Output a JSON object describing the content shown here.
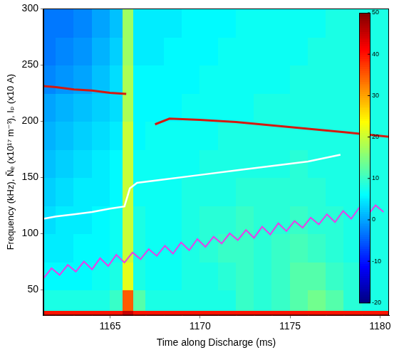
{
  "chart_data": {
    "type": "heatmap",
    "x_label": "Time along Discharge (ms)",
    "y_label": "Frequency (kHz), Ñₑ (x10¹⁷ m⁻³), Iₚ (x10 A)",
    "xlim": [
      1161.3,
      1180.5
    ],
    "xticks": [
      1165,
      1170,
      1175,
      1180
    ],
    "ylim": [
      27,
      300
    ],
    "yticks": [
      50,
      100,
      150,
      200,
      250,
      300
    ],
    "grid": true,
    "heatmap": {
      "x_edges": [
        1161.3,
        1162,
        1163,
        1164,
        1165,
        1165.7,
        1166.3,
        1167,
        1168,
        1169,
        1170,
        1171,
        1172,
        1173,
        1174,
        1175,
        1176,
        1177,
        1178,
        1179,
        1180,
        1180.5
      ],
      "y_edges": [
        27,
        32,
        50,
        75,
        100,
        125,
        150,
        175,
        200,
        225,
        250,
        275,
        300
      ],
      "cells": [
        [
          40,
          40,
          40,
          40,
          40,
          45,
          40,
          40,
          40,
          40,
          40,
          40,
          40,
          40,
          40,
          40,
          40,
          40,
          40,
          40,
          40
        ],
        [
          8,
          8,
          8,
          8,
          10,
          35,
          12,
          8,
          8,
          8,
          8,
          8,
          10,
          9,
          10,
          12,
          14,
          12,
          9,
          8,
          8
        ],
        [
          6,
          6,
          6,
          7,
          8,
          22,
          8,
          7,
          7,
          8,
          8,
          9,
          10,
          9,
          10,
          12,
          12,
          10,
          9,
          8,
          8
        ],
        [
          5,
          5,
          6,
          6,
          7,
          20,
          8,
          7,
          7,
          8,
          9,
          10,
          10,
          9,
          10,
          11,
          10,
          9,
          8,
          8,
          8
        ],
        [
          4,
          5,
          5,
          6,
          7,
          20,
          8,
          7,
          7,
          8,
          9,
          9,
          10,
          9,
          9,
          10,
          9,
          9,
          8,
          8,
          8
        ],
        [
          3,
          4,
          5,
          5,
          6,
          20,
          7,
          7,
          7,
          8,
          8,
          8,
          9,
          9,
          9,
          9,
          9,
          8,
          8,
          8,
          8
        ],
        [
          2,
          3,
          4,
          5,
          6,
          20,
          7,
          7,
          7,
          7,
          8,
          8,
          8,
          8,
          8,
          9,
          8,
          8,
          8,
          8,
          8
        ],
        [
          1,
          2,
          3,
          4,
          5,
          20,
          6,
          7,
          7,
          7,
          7,
          8,
          8,
          8,
          8,
          8,
          8,
          8,
          8,
          8,
          8
        ],
        [
          0,
          1,
          2,
          3,
          4,
          18,
          6,
          6,
          6,
          7,
          7,
          7,
          7,
          8,
          8,
          8,
          8,
          8,
          8,
          8,
          8
        ],
        [
          -2,
          -1,
          0,
          2,
          4,
          18,
          6,
          6,
          6,
          6,
          7,
          7,
          7,
          7,
          7,
          8,
          8,
          8,
          8,
          8,
          8
        ],
        [
          -3,
          -2,
          -1,
          1,
          3,
          17,
          5,
          5,
          6,
          6,
          6,
          7,
          7,
          7,
          7,
          7,
          8,
          8,
          8,
          8,
          8
        ],
        [
          -3,
          -3,
          -2,
          0,
          2,
          17,
          5,
          5,
          5,
          6,
          6,
          6,
          7,
          7,
          7,
          7,
          7,
          8,
          8,
          8,
          8
        ]
      ]
    },
    "colorbar": {
      "range": [
        -20,
        50
      ],
      "ticks": [
        -20,
        -10,
        0,
        10,
        20,
        30,
        40,
        50
      ]
    },
    "series": [
      {
        "type": "line",
        "color": "#d41a10",
        "x": [
          1161.3,
          1162,
          1163,
          1164,
          1165,
          1165.9,
          1166.8,
          1167.5,
          1168.3,
          1170,
          1172,
          1174,
          1176,
          1178,
          1180.5
        ],
        "values": [
          231,
          230,
          228,
          227,
          225,
          224,
          null,
          197,
          202,
          201,
          199,
          196,
          193,
          190,
          186
        ]
      },
      {
        "type": "line",
        "color": "#ffffff",
        "x": [
          1161.3,
          1162,
          1163,
          1164,
          1165,
          1165.8,
          1166.1,
          1166.5,
          1168,
          1170,
          1172,
          1174,
          1176,
          1177.8
        ],
        "values": [
          113,
          115,
          117,
          119,
          122,
          124,
          140,
          145,
          148,
          152,
          156,
          160,
          164,
          170
        ]
      },
      {
        "type": "line",
        "color": "#e83ee8",
        "x": [
          1161.3,
          1161.75,
          1162.2,
          1162.65,
          1163.1,
          1163.55,
          1164.0,
          1164.45,
          1164.9,
          1165.35,
          1165.8,
          1166.25,
          1166.7,
          1167.15,
          1167.6,
          1168.05,
          1168.5,
          1168.95,
          1169.4,
          1169.85,
          1170.3,
          1170.75,
          1171.2,
          1171.65,
          1172.1,
          1172.55,
          1173.0,
          1173.45,
          1173.9,
          1174.35,
          1174.8,
          1175.25,
          1175.7,
          1176.15,
          1176.6,
          1177.05,
          1177.5,
          1177.95,
          1178.4,
          1178.85,
          1179.3,
          1179.75,
          1180.2
        ],
        "values": [
          60,
          69,
          63,
          72,
          66,
          75,
          68,
          78,
          71,
          81,
          74,
          83,
          77,
          86,
          80,
          89,
          82,
          92,
          85,
          95,
          88,
          97,
          91,
          100,
          94,
          103,
          96,
          106,
          99,
          109,
          102,
          111,
          105,
          114,
          108,
          117,
          110,
          120,
          113,
          123,
          116,
          125,
          119
        ]
      }
    ]
  }
}
